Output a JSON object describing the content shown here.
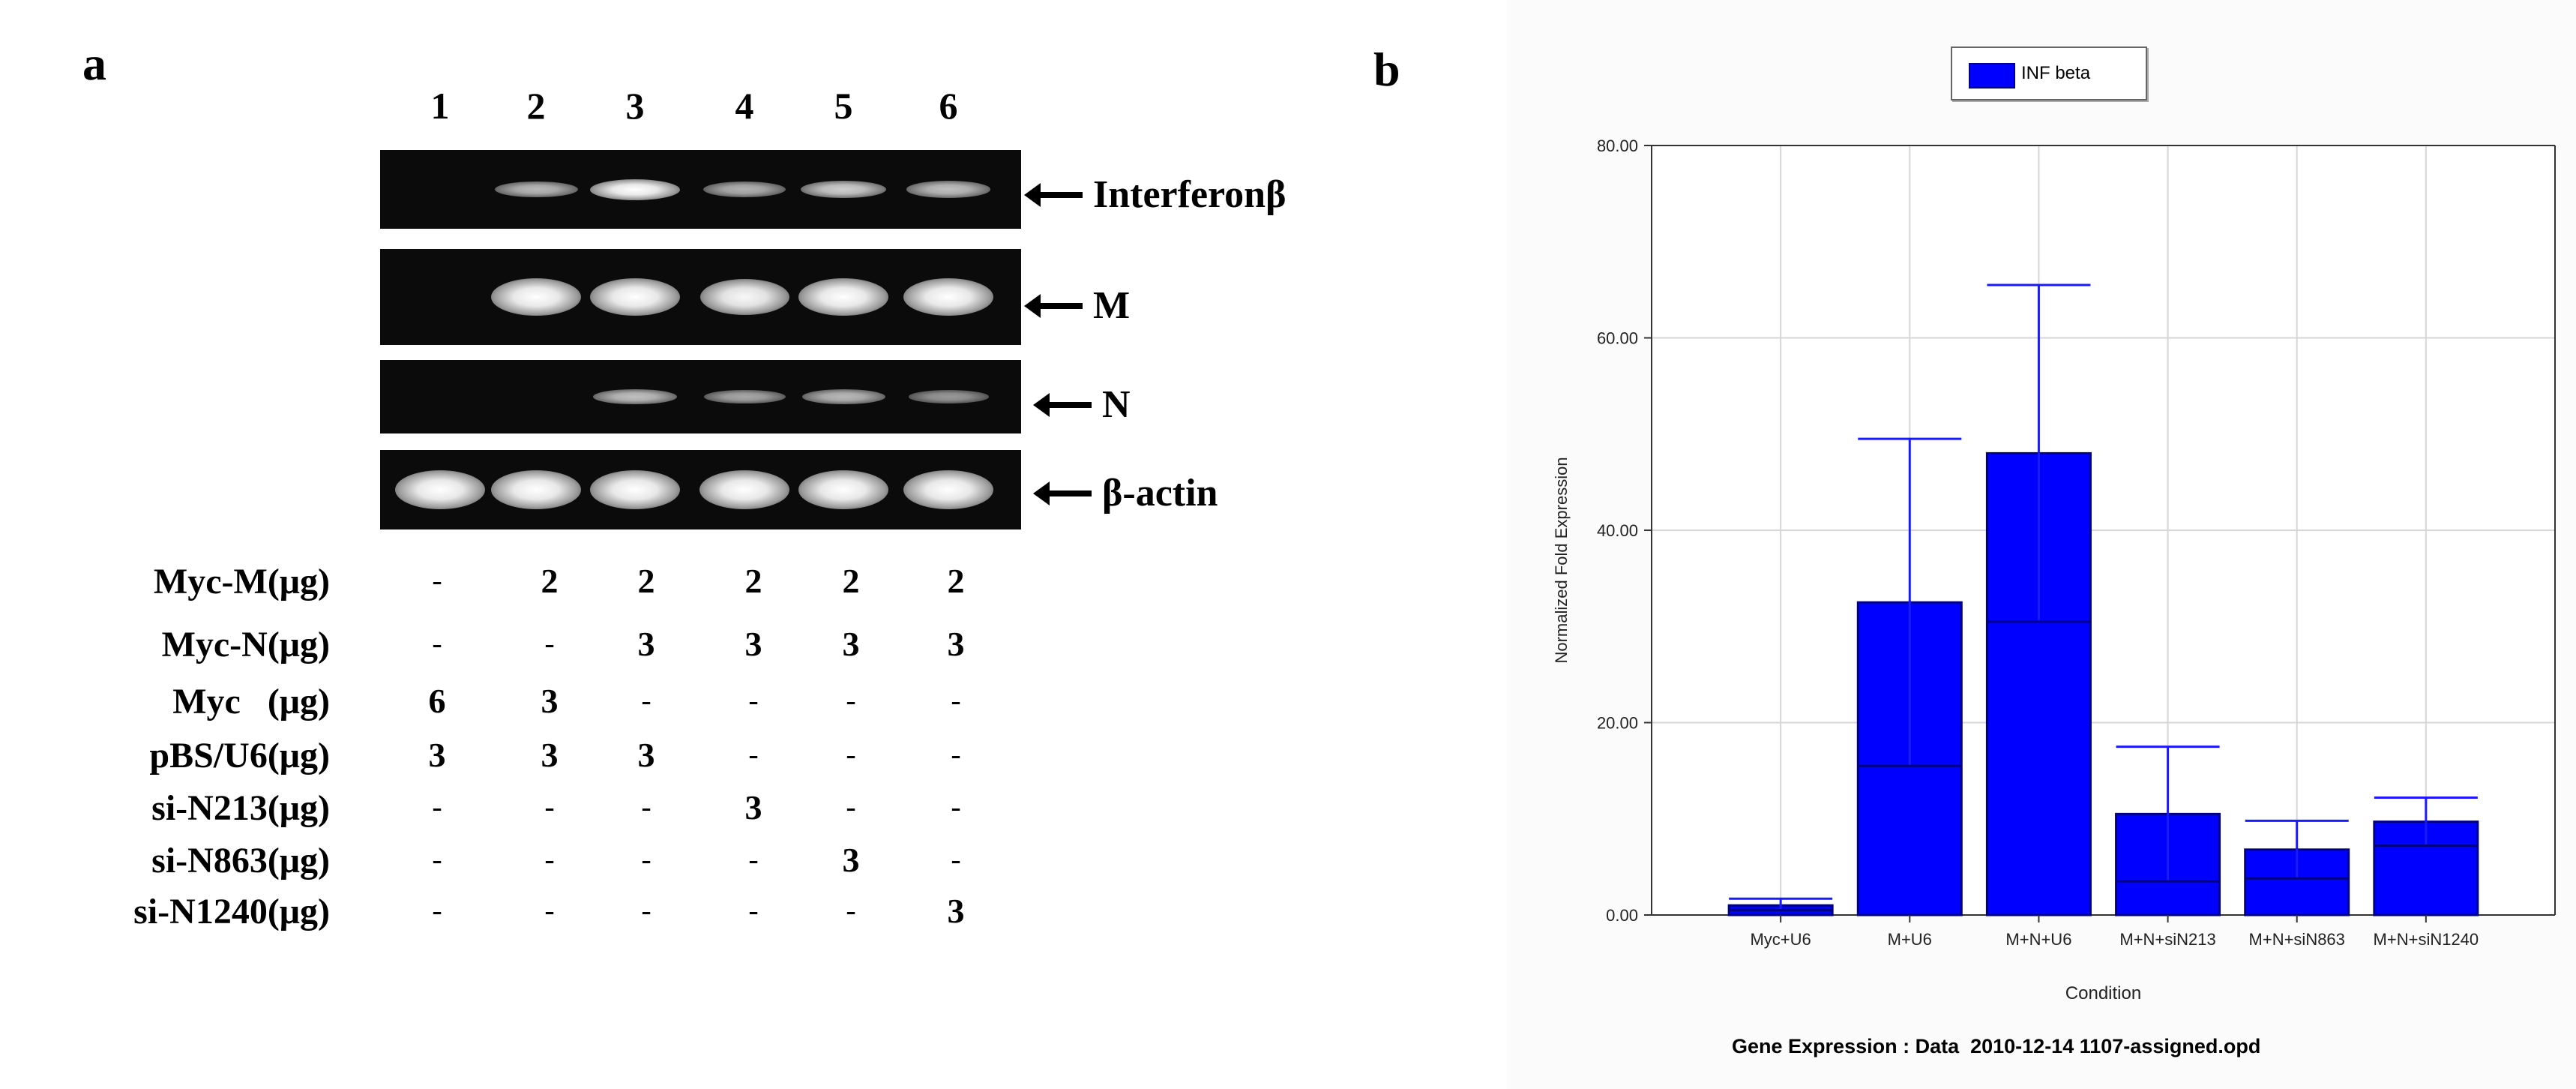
{
  "panel_a": {
    "letter": "a",
    "lanes": [
      "1",
      "2",
      "3",
      "4",
      "5",
      "6"
    ],
    "gels": [
      {
        "label": "Interferonβ",
        "bands": [
          0,
          0.55,
          1.0,
          0.5,
          0.7,
          0.6
        ]
      },
      {
        "label": "M",
        "bands": [
          0,
          1.0,
          1.0,
          0.95,
          1.0,
          1.0
        ]
      },
      {
        "label": "N",
        "bands": [
          0,
          0,
          0.6,
          0.45,
          0.55,
          0.35
        ]
      },
      {
        "label": "β-actin",
        "bands": [
          1.0,
          1.0,
          1.0,
          1.0,
          1.0,
          1.0
        ]
      }
    ],
    "conditions": [
      {
        "label": "Myc-M(μg)",
        "values": [
          "-",
          "2",
          "2",
          "2",
          "2",
          "2"
        ]
      },
      {
        "label": "Myc-N(μg)",
        "values": [
          "-",
          "-",
          "3",
          "3",
          "3",
          "3"
        ]
      },
      {
        "label": "Myc   (μg)",
        "values": [
          "6",
          "3",
          "-",
          "-",
          "-",
          "-"
        ]
      },
      {
        "label": "pBS/U6(μg)",
        "values": [
          "3",
          "3",
          "3",
          "-",
          "-",
          "-"
        ]
      },
      {
        "label": "si-N213(μg)",
        "values": [
          "-",
          "-",
          "-",
          "3",
          "-",
          "-"
        ]
      },
      {
        "label": "si-N863(μg)",
        "values": [
          "-",
          "-",
          "-",
          "-",
          "3",
          "-"
        ]
      },
      {
        "label": "si-N1240(μg)",
        "values": [
          "-",
          "-",
          "-",
          "-",
          "-",
          "3"
        ]
      }
    ]
  },
  "panel_b": {
    "letter": "b",
    "footer": "Gene Expression : Data  2010-12-14 1107-assigned.opd"
  },
  "chart_data": {
    "type": "bar",
    "title": "",
    "categories": [
      "Myc+U6",
      "M+U6",
      "M+N+U6",
      "M+N+siN213",
      "M+N+siN863",
      "M+N+siN1240"
    ],
    "series": [
      {
        "name": "INF beta",
        "values": [
          1.0,
          32.5,
          48.0,
          10.5,
          6.8,
          9.7
        ],
        "error_upper": [
          1.7,
          49.5,
          65.5,
          17.5,
          9.8,
          12.2
        ],
        "error_lower": [
          0.5,
          15.5,
          30.5,
          3.5,
          3.8,
          7.2
        ]
      }
    ],
    "xlabel": "Condition",
    "ylabel": "Normalized Fold Expression",
    "ylim": [
      0,
      80
    ],
    "yticks": [
      "0.00",
      "20.00",
      "40.00",
      "60.00",
      "80.00"
    ],
    "grid": true,
    "legend_position": "top",
    "colors": {
      "bar": "#0000ff",
      "bar_edge": "#000080",
      "error": "#1a1aff"
    }
  }
}
